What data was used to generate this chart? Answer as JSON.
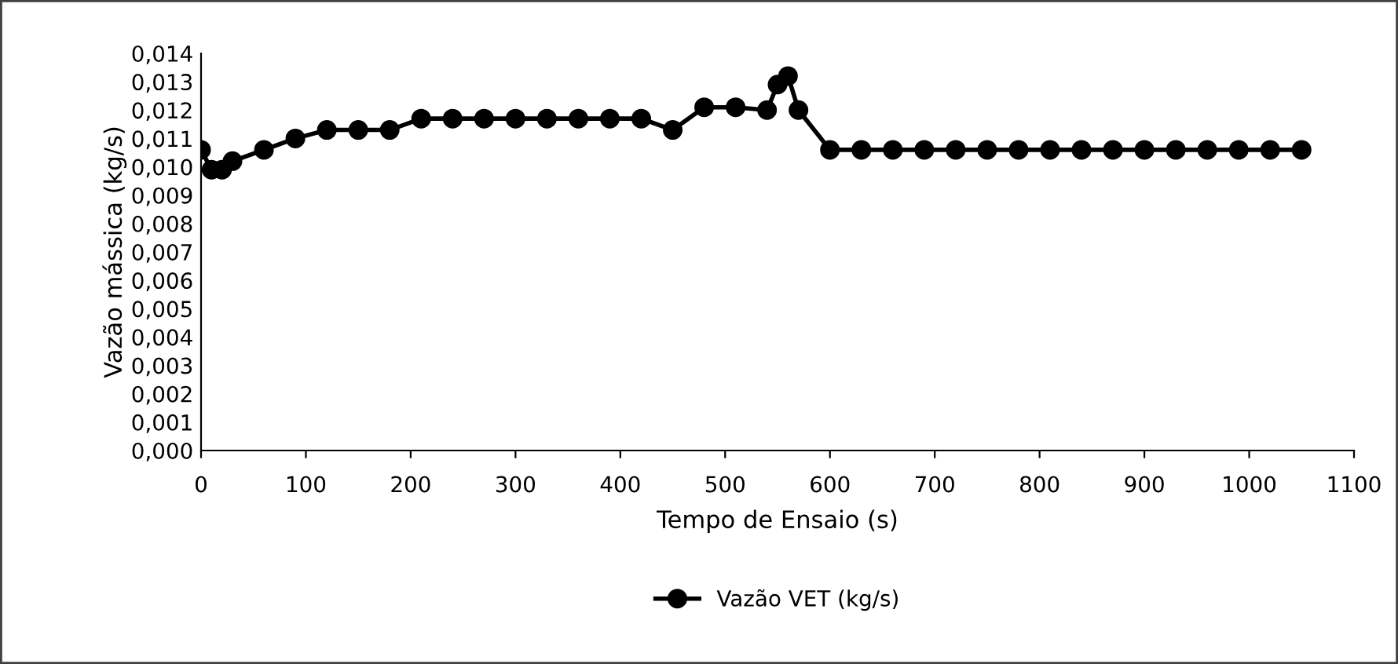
{
  "chart_data": {
    "type": "line",
    "xlabel": "Tempo de Ensaio (s)",
    "ylabel": "Vazão mássica (kg/s)",
    "x": [
      0,
      10,
      20,
      30,
      60,
      90,
      120,
      150,
      180,
      210,
      240,
      270,
      300,
      330,
      360,
      390,
      420,
      450,
      480,
      510,
      540,
      550,
      560,
      570,
      600,
      630,
      660,
      690,
      720,
      750,
      780,
      810,
      840,
      870,
      900,
      930,
      960,
      990,
      1020,
      1050
    ],
    "series": [
      {
        "name": "Vazão VET (kg/s)",
        "color": "#000000",
        "values": [
          0.0106,
          0.0099,
          0.0099,
          0.0102,
          0.0106,
          0.011,
          0.0113,
          0.0113,
          0.0113,
          0.0117,
          0.0117,
          0.0117,
          0.0117,
          0.0117,
          0.0117,
          0.0117,
          0.0117,
          0.0113,
          0.0121,
          0.0121,
          0.012,
          0.0129,
          0.0132,
          0.012,
          0.0106,
          0.0106,
          0.0106,
          0.0106,
          0.0106,
          0.0106,
          0.0106,
          0.0106,
          0.0106,
          0.0106,
          0.0106,
          0.0106,
          0.0106,
          0.0106,
          0.0106,
          0.0106
        ]
      }
    ],
    "xlim": [
      0,
      1100
    ],
    "xticks": [
      0,
      100,
      200,
      300,
      400,
      500,
      600,
      700,
      800,
      900,
      1000,
      1100
    ],
    "ylim": [
      0,
      0.014
    ],
    "yticks": [
      {
        "value": 0,
        "label": "0,000"
      },
      {
        "value": 0.001,
        "label": "0,001"
      },
      {
        "value": 0.002,
        "label": "0,002"
      },
      {
        "value": 0.003,
        "label": "0,003"
      },
      {
        "value": 0.004,
        "label": "0,004"
      },
      {
        "value": 0.005,
        "label": "0,005"
      },
      {
        "value": 0.006,
        "label": "0,006"
      },
      {
        "value": 0.007,
        "label": "0,007"
      },
      {
        "value": 0.008,
        "label": "0,008"
      },
      {
        "value": 0.009,
        "label": "0,009"
      },
      {
        "value": 0.01,
        "label": "0,010"
      },
      {
        "value": 0.011,
        "label": "0,011"
      },
      {
        "value": 0.012,
        "label": "0,012"
      },
      {
        "value": 0.013,
        "label": "0,013"
      },
      {
        "value": 0.014,
        "label": "0,014"
      }
    ],
    "grid": false,
    "legend": "bottom",
    "marker": "circle",
    "line_style": "solid"
  }
}
